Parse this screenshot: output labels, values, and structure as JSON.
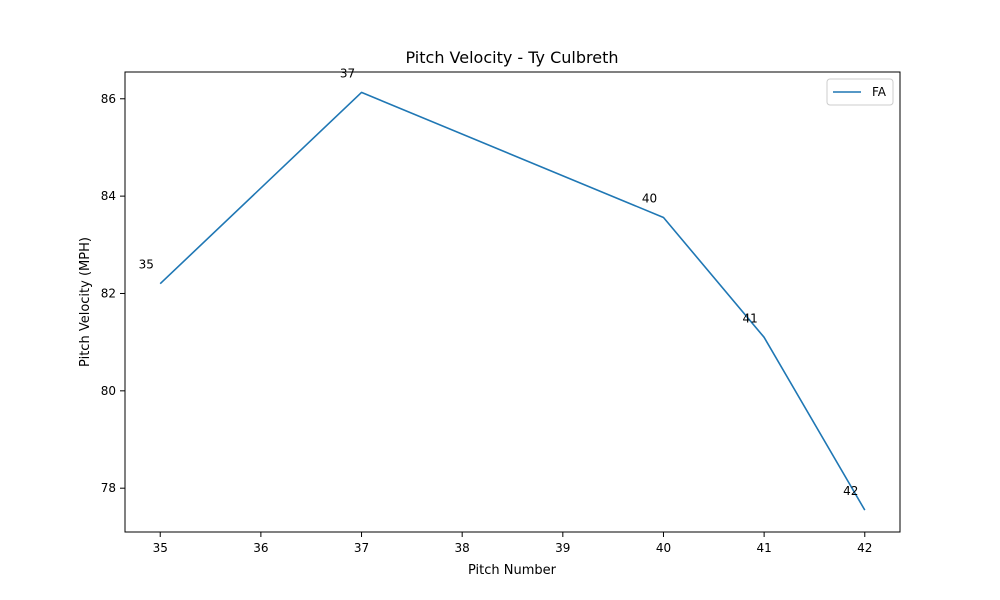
{
  "chart_data": {
    "type": "line",
    "title": "Pitch Velocity - Ty Culbreth",
    "xlabel": "Pitch Number",
    "ylabel": "Pitch Velocity (MPH)",
    "xlim": [
      34.65,
      42.35
    ],
    "ylim": [
      77.1,
      86.55
    ],
    "xticks": [
      35,
      36,
      37,
      38,
      39,
      40,
      41,
      42
    ],
    "yticks": [
      78,
      80,
      82,
      84,
      86
    ],
    "grid": false,
    "legend_position": "top-right",
    "series": [
      {
        "name": "FA",
        "color": "#1f77b4",
        "x": [
          35,
          37,
          40,
          41,
          42
        ],
        "y": [
          82.2,
          86.13,
          83.56,
          81.1,
          77.55
        ],
        "labels": [
          "35",
          "37",
          "40",
          "41",
          "42"
        ]
      }
    ]
  }
}
